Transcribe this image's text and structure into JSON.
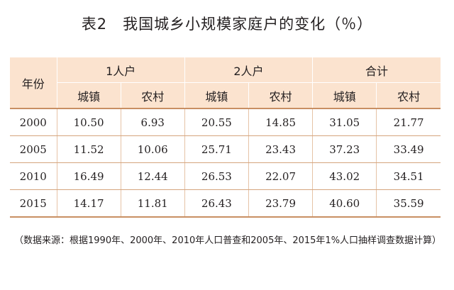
{
  "title": "表2　我国城乡小规模家庭户的变化（％）",
  "table": {
    "year_header": "年份",
    "groups": [
      "1人户",
      "2人户",
      "合计"
    ],
    "subheaders": [
      "城镇",
      "农村",
      "城镇",
      "农村",
      "城镇",
      "农村"
    ],
    "rows": [
      {
        "year": "2000",
        "values": [
          "10.50",
          "6.93",
          "20.55",
          "14.85",
          "31.05",
          "21.77"
        ]
      },
      {
        "year": "2005",
        "values": [
          "11.52",
          "10.06",
          "25.71",
          "23.43",
          "37.23",
          "33.49"
        ]
      },
      {
        "year": "2010",
        "values": [
          "16.49",
          "12.44",
          "26.53",
          "22.07",
          "43.02",
          "34.51"
        ]
      },
      {
        "year": "2015",
        "values": [
          "14.17",
          "11.81",
          "26.43",
          "23.79",
          "40.60",
          "35.59"
        ]
      }
    ]
  },
  "note": "（数据来源：根据1990年、2000年、2010年人口普查和2005年、2015年1%人口抽样调查数据计算）",
  "colors": {
    "header_bg": "#fbe3cf",
    "rule": "#c98f63"
  }
}
